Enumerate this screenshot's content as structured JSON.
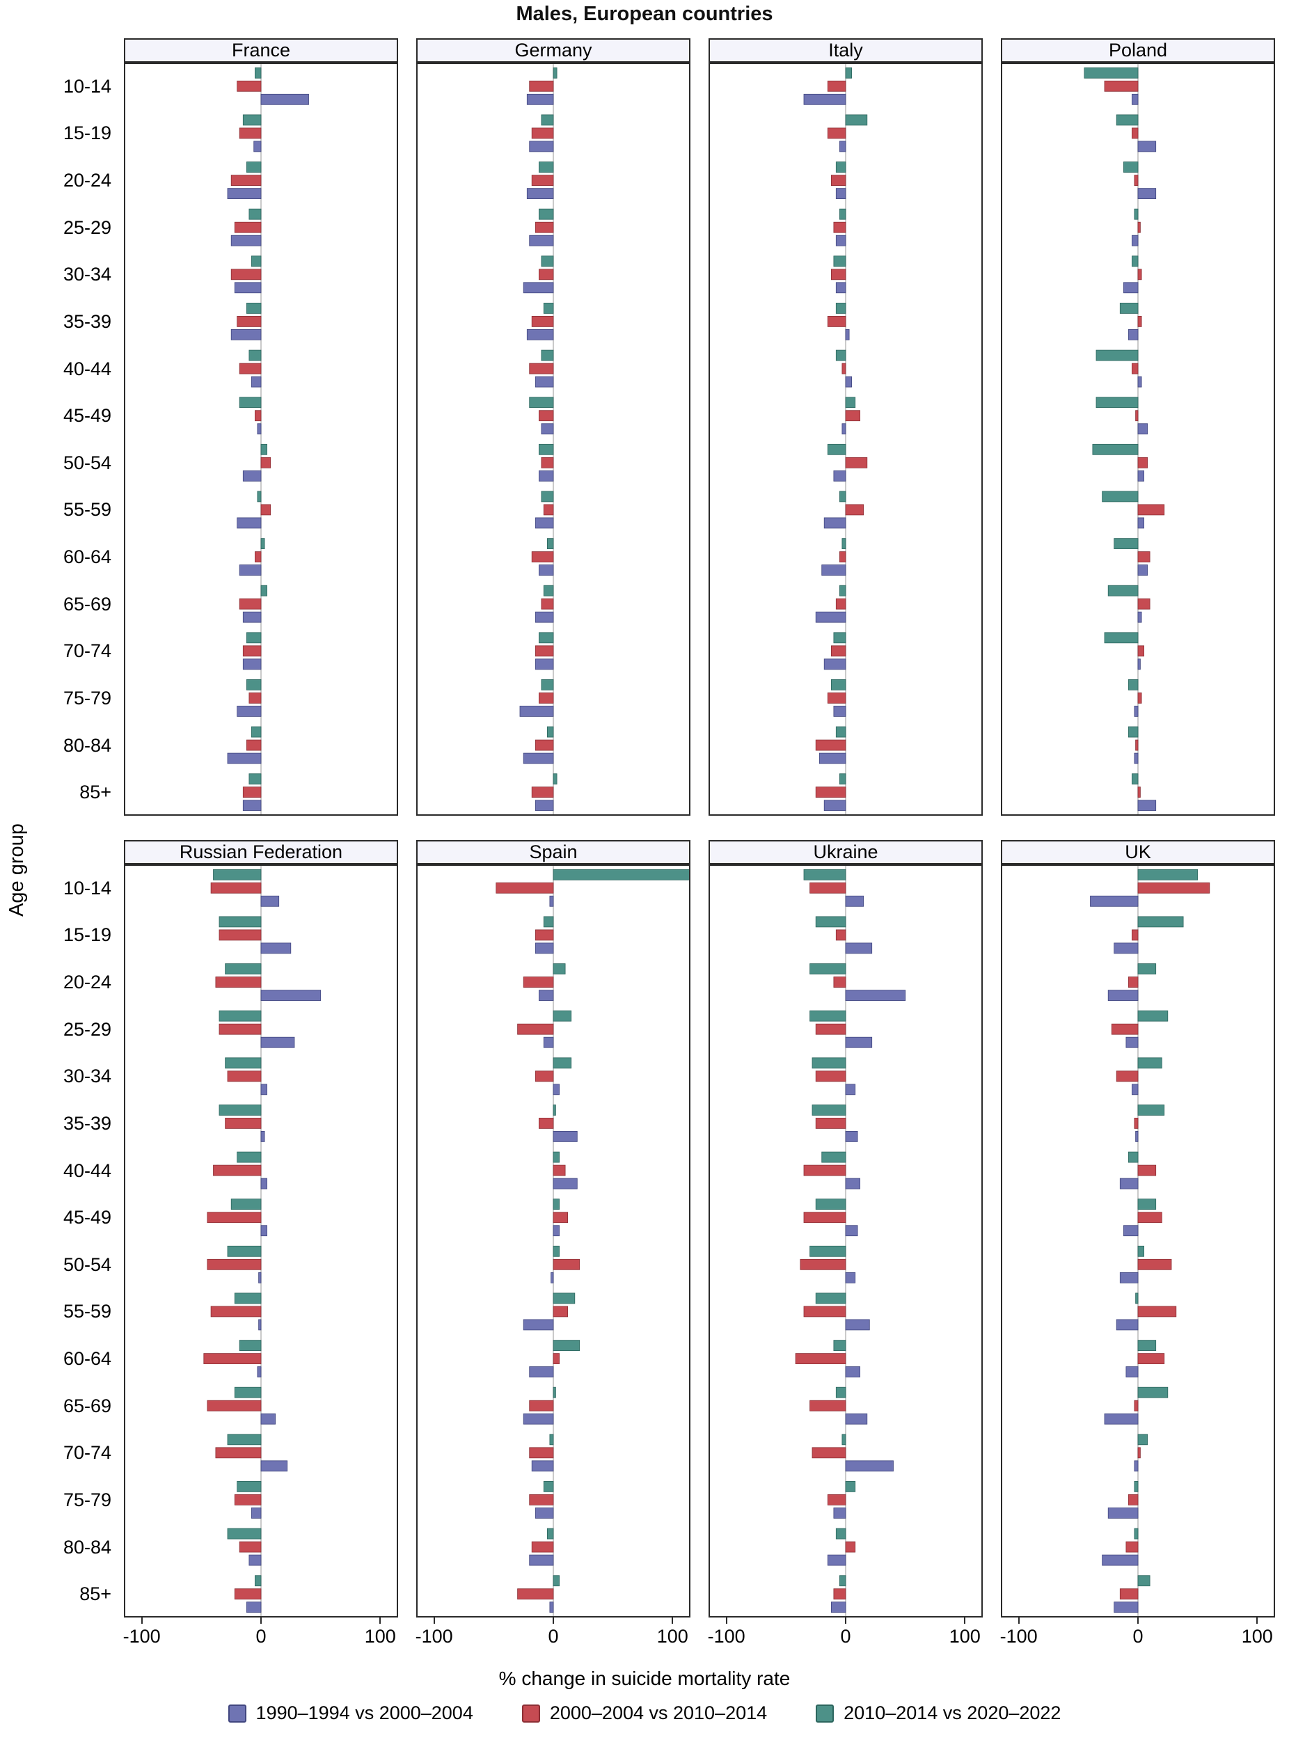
{
  "title": "Males, European countries",
  "ylabel": "Age group",
  "xlabel": "% change in suicide mortality rate",
  "colors": {
    "s1": "#6f74b3",
    "s1_dark": "#41467f",
    "s2": "#c64b52",
    "s2_dark": "#8c2f35",
    "s3": "#4d9188",
    "s3_dark": "#2c665e",
    "strip_bg": "#f4f4fb",
    "frame": "#2a2a2a",
    "zero_line": "#b9b9b9"
  },
  "legend": [
    {
      "key": "s1",
      "label": "1990–1994 vs 2000–2004"
    },
    {
      "key": "s2",
      "label": "2000–2004 vs 2010–2014"
    },
    {
      "key": "s3",
      "label": "2010–2014 vs 2020–2022"
    }
  ],
  "chart_data": {
    "type": "bar",
    "orientation": "horizontal",
    "title": "Males, European countries",
    "xlabel": "% change in suicide mortality rate",
    "ylabel": "Age group",
    "x_domain": [
      -115,
      115
    ],
    "x_ticks": [
      -100,
      0,
      100
    ],
    "legend_position": "bottom",
    "grid": false,
    "categories": [
      "10-14",
      "15-19",
      "20-24",
      "25-29",
      "30-34",
      "35-39",
      "40-44",
      "45-49",
      "50-54",
      "55-59",
      "60-64",
      "65-69",
      "70-74",
      "75-79",
      "80-84",
      "85+"
    ],
    "series_names": {
      "s1": "1990–1994 vs 2000–2004",
      "s2": "2000–2004 vs 2010–2014",
      "s3": "2010–2014 vs 2020–2022"
    },
    "facets": [
      {
        "country": "France",
        "values": {
          "s1": [
            40,
            -6,
            -28,
            -25,
            -22,
            -25,
            -8,
            -3,
            -15,
            -20,
            -18,
            -15,
            -15,
            -20,
            -28,
            -15
          ],
          "s2": [
            -20,
            -18,
            -25,
            -22,
            -25,
            -20,
            -18,
            -5,
            8,
            8,
            -5,
            -18,
            -15,
            -10,
            -12,
            -15
          ],
          "s3": [
            -5,
            -15,
            -12,
            -10,
            -8,
            -12,
            -10,
            -18,
            5,
            -3,
            3,
            5,
            -12,
            -12,
            -8,
            -10
          ]
        }
      },
      {
        "country": "Germany",
        "values": {
          "s1": [
            -22,
            -20,
            -22,
            -20,
            -25,
            -22,
            -15,
            -10,
            -12,
            -15,
            -12,
            -15,
            -15,
            -28,
            -25,
            -15
          ],
          "s2": [
            -20,
            -18,
            -18,
            -15,
            -12,
            -18,
            -20,
            -12,
            -10,
            -8,
            -18,
            -10,
            -15,
            -12,
            -15,
            -18
          ],
          "s3": [
            3,
            -10,
            -12,
            -12,
            -10,
            -8,
            -10,
            -20,
            -12,
            -10,
            -5,
            -8,
            -12,
            -10,
            -5,
            3
          ]
        }
      },
      {
        "country": "Italy",
        "values": {
          "s1": [
            -35,
            -5,
            -8,
            -8,
            -8,
            3,
            5,
            -3,
            -10,
            -18,
            -20,
            -25,
            -18,
            -10,
            -22,
            -18
          ],
          "s2": [
            -15,
            -15,
            -12,
            -10,
            -12,
            -15,
            -3,
            12,
            18,
            15,
            -5,
            -8,
            -12,
            -15,
            -25,
            -25
          ],
          "s3": [
            5,
            18,
            -8,
            -5,
            -10,
            -8,
            -8,
            8,
            -15,
            -5,
            -3,
            -5,
            -10,
            -12,
            -8,
            -5
          ]
        }
      },
      {
        "country": "Poland",
        "values": {
          "s1": [
            -5,
            15,
            15,
            -5,
            -12,
            -8,
            3,
            8,
            5,
            5,
            8,
            3,
            2,
            -3,
            -3,
            15
          ],
          "s2": [
            -28,
            -5,
            -3,
            2,
            3,
            3,
            -5,
            -2,
            8,
            22,
            10,
            10,
            5,
            3,
            -2,
            2
          ],
          "s3": [
            -45,
            -18,
            -12,
            -3,
            -5,
            -15,
            -35,
            -35,
            -38,
            -30,
            -20,
            -25,
            -28,
            -8,
            -8,
            -5
          ]
        }
      },
      {
        "country": "Russian Federation",
        "values": {
          "s1": [
            15,
            25,
            50,
            28,
            5,
            3,
            5,
            5,
            -2,
            -2,
            -3,
            12,
            22,
            -8,
            -10,
            -12
          ],
          "s2": [
            -42,
            -35,
            -38,
            -35,
            -28,
            -30,
            -40,
            -45,
            -45,
            -42,
            -48,
            -45,
            -38,
            -22,
            -18,
            -22
          ],
          "s3": [
            -40,
            -35,
            -30,
            -35,
            -30,
            -35,
            -20,
            -25,
            -28,
            -22,
            -18,
            -22,
            -28,
            -20,
            -28,
            -5
          ]
        }
      },
      {
        "country": "Spain",
        "values": {
          "s1": [
            -3,
            -15,
            -12,
            -8,
            5,
            20,
            20,
            5,
            -2,
            -25,
            -20,
            -25,
            -18,
            -15,
            -20,
            -3
          ],
          "s2": [
            -48,
            -15,
            -25,
            -30,
            -15,
            -12,
            10,
            12,
            22,
            12,
            5,
            -20,
            -20,
            -20,
            -18,
            -30
          ],
          "s3": [
            115,
            -8,
            10,
            15,
            15,
            2,
            5,
            5,
            5,
            18,
            22,
            2,
            -3,
            -8,
            -5,
            5
          ]
        }
      },
      {
        "country": "Ukraine",
        "values": {
          "s1": [
            15,
            22,
            50,
            22,
            8,
            10,
            12,
            10,
            8,
            20,
            12,
            18,
            40,
            -10,
            -15,
            -12
          ],
          "s2": [
            -30,
            -8,
            -10,
            -25,
            -25,
            -25,
            -35,
            -35,
            -38,
            -35,
            -42,
            -30,
            -28,
            -15,
            8,
            -10
          ],
          "s3": [
            -35,
            -25,
            -30,
            -30,
            -28,
            -28,
            -20,
            -25,
            -30,
            -25,
            -10,
            -8,
            -3,
            8,
            -8,
            -5
          ]
        }
      },
      {
        "country": "UK",
        "values": {
          "s1": [
            -40,
            -20,
            -25,
            -10,
            -5,
            -2,
            -15,
            -12,
            -15,
            -18,
            -10,
            -28,
            -3,
            -25,
            -30,
            -20
          ],
          "s2": [
            60,
            -5,
            -8,
            -22,
            -18,
            -3,
            15,
            20,
            28,
            32,
            22,
            -3,
            2,
            -8,
            -10,
            -15
          ],
          "s3": [
            50,
            38,
            15,
            25,
            20,
            22,
            -8,
            15,
            5,
            -2,
            15,
            25,
            8,
            -3,
            -3,
            10
          ]
        }
      }
    ]
  }
}
